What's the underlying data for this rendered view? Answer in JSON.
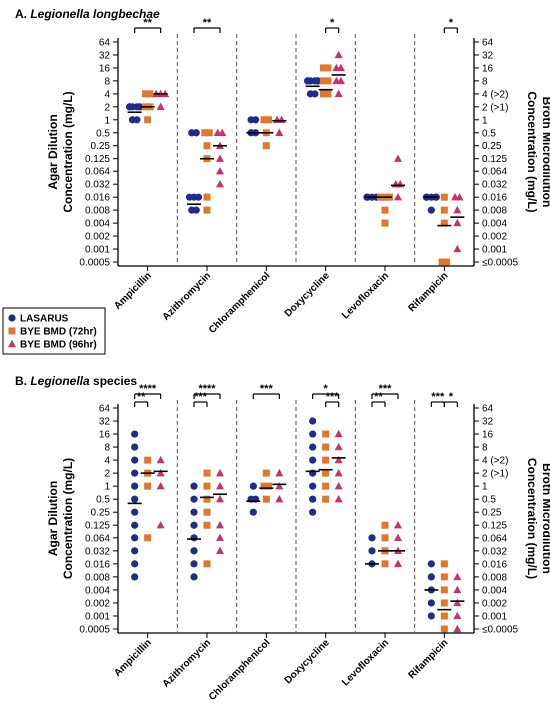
{
  "colors": {
    "LASARUS": "#1f2c8c",
    "BYE BMD (72hr)": "#e0772a",
    "BYE BMD (96hr)": "#cc2f6f"
  },
  "legend": [
    "LASARUS",
    "BYE BMD (72hr)",
    "BYE BMD (96hr)"
  ],
  "chart_data": [
    {
      "type": "scatter",
      "title_prefix": "A. ",
      "title_italic": "Legionella longbechae",
      "title_rest": "",
      "ylabel_left": [
        "Agar Dilution",
        "Concentration (mg/L)"
      ],
      "ylabel_right": [
        "Broth Microdilution",
        "Concentration (mg/L)"
      ],
      "log_scale": true,
      "y_ticks_left": [
        "64",
        "32",
        "16",
        "8",
        "4",
        "2",
        "1",
        "0.5",
        "0.25",
        "0.125",
        "0.064",
        "0.032",
        "0.016",
        "0.008",
        "0.004",
        "0.002",
        "0.001",
        "0.0005"
      ],
      "y_ticks_right": [
        "64",
        "32",
        "16",
        "8",
        "4 (>2)",
        "2 (>1)",
        "1",
        "0.5",
        "0.25",
        "0.125",
        "0.064",
        "0.032",
        "0.016",
        "0.008",
        "0.004",
        "0.002",
        "0.001",
        "≤0.0005"
      ],
      "categories": [
        "Ampicillin",
        "Azithromycin",
        "Chloramphenicol",
        "Doxycycline",
        "Levofloxacin",
        "Rifampicin"
      ],
      "series": [
        {
          "name": "LASARUS",
          "values": [
            [
              1,
              1,
              2,
              2,
              2,
              2,
              2,
              2
            ],
            [
              0.008,
              0.008,
              0.016,
              0.016,
              0.016,
              0.5,
              0.5
            ],
            [
              0.5,
              0.5,
              1,
              1
            ],
            [
              4,
              4,
              8,
              8,
              8,
              8,
              8,
              8
            ],
            [
              0.016,
              0.016,
              0.016,
              0.016,
              0.016
            ],
            [
              0.008,
              0.016,
              0.016,
              0.016,
              0.016,
              0.016
            ]
          ]
        },
        {
          "name": "BYE BMD (72hr)",
          "values": [
            [
              1,
              2,
              2,
              4,
              4
            ],
            [
              0.008,
              0.016,
              0.125,
              0.25,
              0.5,
              0.5
            ],
            [
              0.25,
              0.5,
              1,
              1
            ],
            [
              4,
              4,
              8,
              8,
              16,
              16
            ],
            [
              0.004,
              0.008,
              0.016,
              0.016,
              0.016
            ],
            [
              0.0005,
              0.0005,
              0.004,
              0.008,
              0.016
            ]
          ]
        },
        {
          "name": "BYE BMD (96hr)",
          "values": [
            [
              2,
              4,
              4,
              4
            ],
            [
              0.032,
              0.064,
              0.125,
              0.25,
              0.5,
              0.5
            ],
            [
              0.5,
              1,
              1
            ],
            [
              4,
              8,
              8,
              16,
              16,
              32
            ],
            [
              0.016,
              0.032,
              0.032,
              0.125
            ],
            [
              0.001,
              0.004,
              0.008,
              0.016,
              0.016
            ]
          ]
        }
      ],
      "medians": [
        [
          1.5,
          2,
          4
        ],
        [
          0.011,
          0.125,
          0.25
        ],
        [
          0.5,
          0.5,
          0.95
        ],
        [
          6,
          5,
          11
        ],
        [
          0.016,
          0.016,
          0.03
        ],
        [
          0.016,
          0.0035,
          0.0055
        ]
      ],
      "significance": [
        {
          "category": 0,
          "from": 0,
          "to": 2,
          "label": "**"
        },
        {
          "category": 1,
          "from": 0,
          "to": 2,
          "label": "**"
        },
        {
          "category": 3,
          "from": 1,
          "to": 2,
          "label": "*"
        },
        {
          "category": 5,
          "from": 1,
          "to": 2,
          "label": "*"
        }
      ]
    },
    {
      "type": "scatter",
      "title_prefix": "B. ",
      "title_italic": "Legionella",
      "title_rest": " species",
      "ylabel_left": [
        "Agar Dilution",
        "Concentration (mg/L)"
      ],
      "ylabel_right": [
        "Broth Microdilution",
        "Concentration (mg/L)"
      ],
      "log_scale": true,
      "y_ticks_left": [
        "64",
        "32",
        "16",
        "8",
        "4",
        "2",
        "1",
        "0.5",
        "0.25",
        "0.125",
        "0.064",
        "0.032",
        "0.016",
        "0.008",
        "0.004",
        "0.002",
        "0.001",
        "0.0005"
      ],
      "y_ticks_right": [
        "64",
        "32",
        "16",
        "8",
        "4 (>2)",
        "2 (>1)",
        "1",
        "0.5",
        "0.25",
        "0.125",
        "0.064",
        "0.032",
        "0.016",
        "0.008",
        "0.004",
        "0.002",
        "0.001",
        "≤0.0005"
      ],
      "categories": [
        "Ampicillin",
        "Azithromycin",
        "Chloramphenicol",
        "Doxycycline",
        "Levofloxacin",
        "Rifampicin"
      ],
      "series": [
        {
          "name": "LASARUS",
          "values": [
            [
              0.008,
              0.016,
              0.032,
              0.064,
              0.125,
              0.25,
              0.5,
              1,
              2,
              4,
              8,
              16
            ],
            [
              0.008,
              0.016,
              0.032,
              0.064,
              0.125,
              0.25,
              0.5,
              1
            ],
            [
              0.25,
              0.5,
              0.5,
              1
            ],
            [
              0.25,
              0.5,
              1,
              2,
              4,
              8,
              16,
              32
            ],
            [
              0.016,
              0.032,
              0.064
            ],
            [
              0.001,
              0.002,
              0.004,
              0.008,
              0.016
            ]
          ]
        },
        {
          "name": "BYE BMD (72hr)",
          "values": [
            [
              0.064,
              1,
              2,
              4
            ],
            [
              0.016,
              0.125,
              0.25,
              0.5,
              1,
              2
            ],
            [
              0.5,
              1,
              1,
              2
            ],
            [
              0.5,
              1,
              2,
              4,
              8,
              16
            ],
            [
              0.016,
              0.032,
              0.064,
              0.125
            ],
            [
              0.0005,
              0.001,
              0.002,
              0.004,
              0.008,
              0.016
            ]
          ]
        },
        {
          "name": "BYE BMD (96hr)",
          "values": [
            [
              0.125,
              1,
              2,
              4
            ],
            [
              0.032,
              0.064,
              0.125,
              0.5,
              1,
              2
            ],
            [
              0.5,
              1,
              2
            ],
            [
              0.5,
              1,
              2,
              4,
              8,
              16
            ],
            [
              0.016,
              0.032,
              0.064,
              0.125
            ],
            [
              0.0005,
              0.001,
              0.002,
              0.004,
              0.008
            ]
          ]
        }
      ],
      "medians": [
        [
          0.4,
          2,
          2.2
        ],
        [
          0.06,
          0.55,
          0.65
        ],
        [
          0.45,
          0.9,
          1.1
        ],
        [
          2.2,
          2.4,
          4.5
        ],
        [
          0.016,
          0.032,
          0.032
        ],
        [
          0.004,
          0.0014,
          0.0022
        ]
      ],
      "significance": [
        {
          "category": 0,
          "from": 0,
          "to": 2,
          "label": "****"
        },
        {
          "category": 0,
          "from": 0,
          "to": 1,
          "label": "**"
        },
        {
          "category": 1,
          "from": 0,
          "to": 2,
          "label": "****"
        },
        {
          "category": 1,
          "from": 0,
          "to": 1,
          "label": "***"
        },
        {
          "category": 2,
          "from": 0,
          "to": 2,
          "label": "***"
        },
        {
          "category": 3,
          "from": 0,
          "to": 2,
          "label": "*"
        },
        {
          "category": 3,
          "from": 1,
          "to": 2,
          "label": "***"
        },
        {
          "category": 4,
          "from": 0,
          "to": 2,
          "label": "***"
        },
        {
          "category": 4,
          "from": 0,
          "to": 1,
          "label": "**"
        },
        {
          "category": 5,
          "from": 0,
          "to": 1,
          "label": "***"
        },
        {
          "category": 5,
          "from": 1,
          "to": 2,
          "label": "*"
        }
      ]
    }
  ]
}
